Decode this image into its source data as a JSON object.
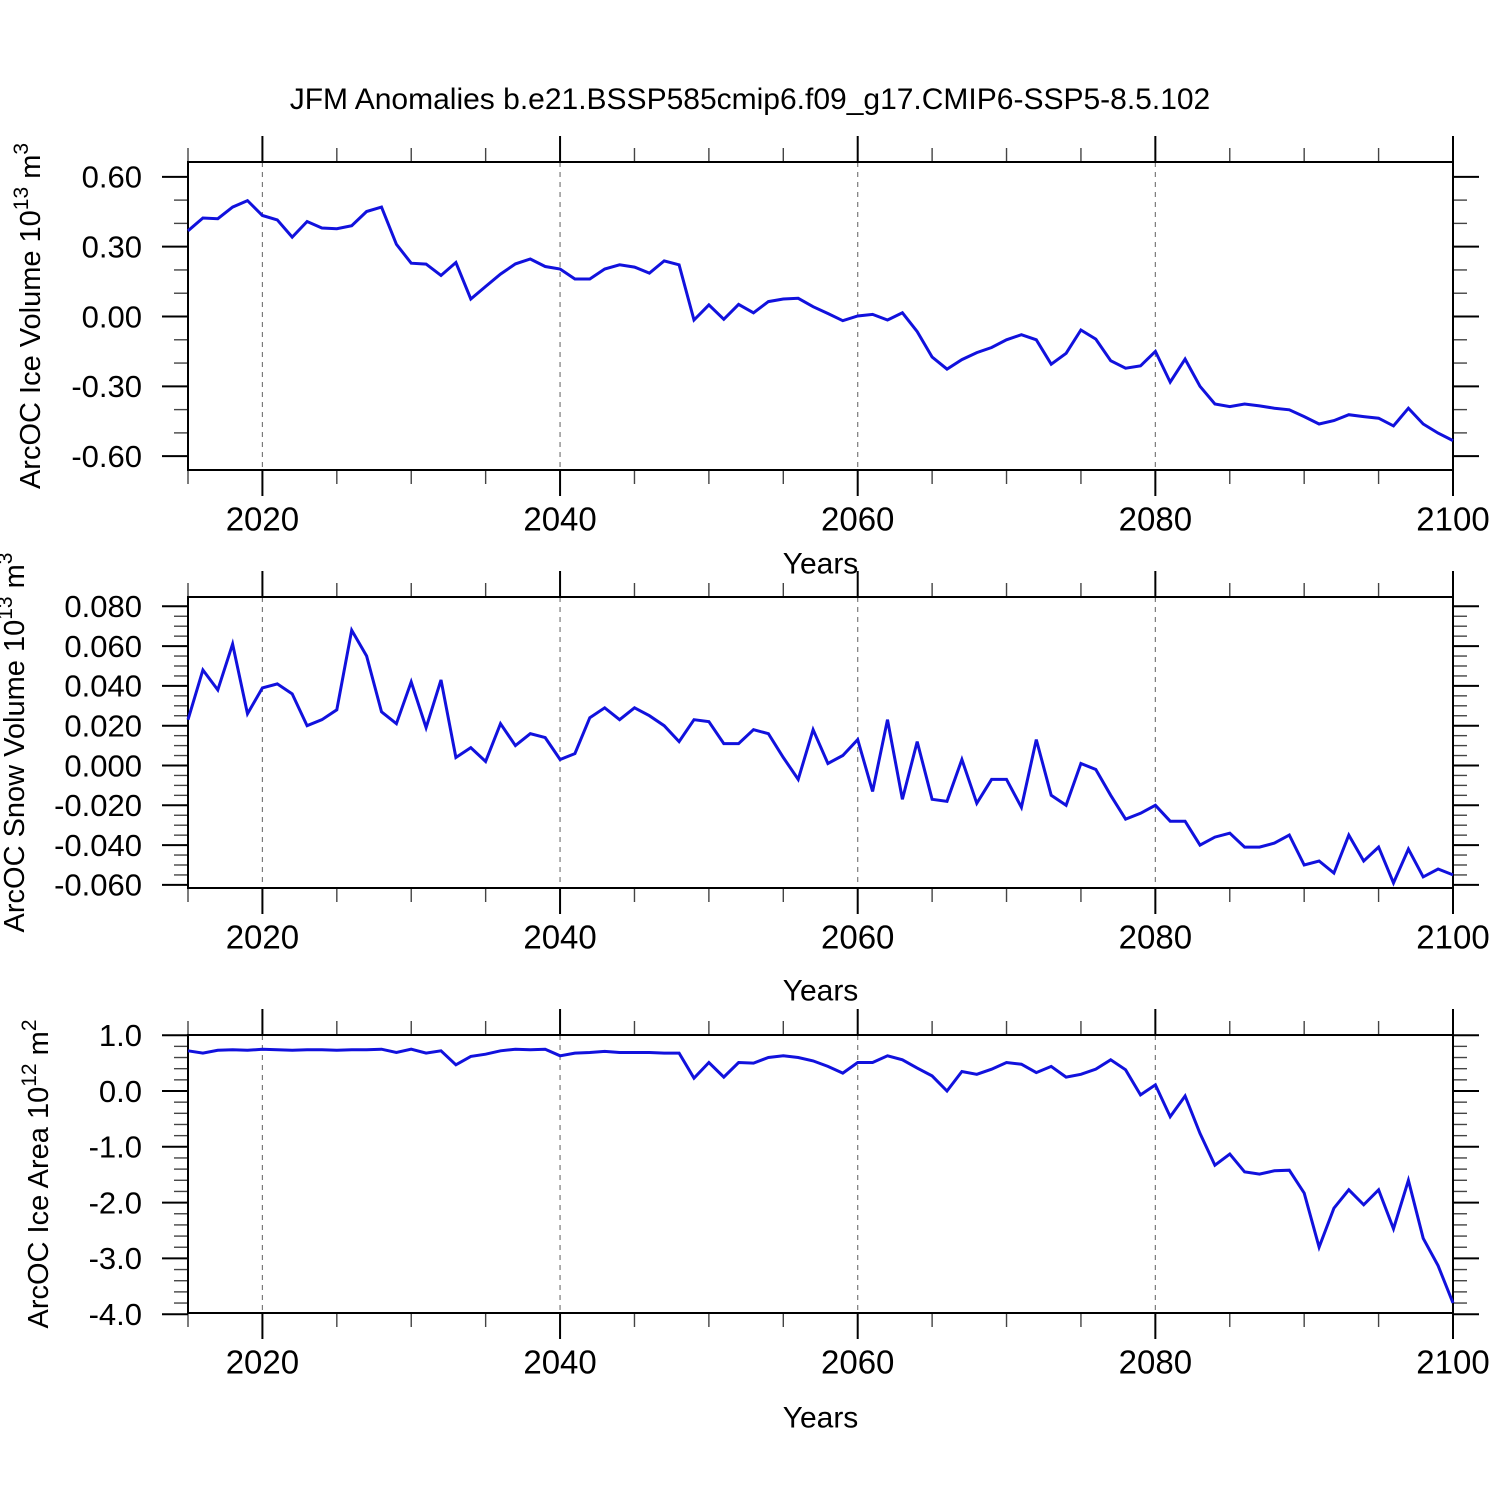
{
  "title": "JFM Anomalies b.e21.BSSP585cmip6.f09_g17.CMIP6-SSP5-8.5.102",
  "line_color": "#1111dd",
  "grid_color": "#7a7a7a",
  "axis_color": "#000000",
  "minor_tick_color": "#444444",
  "chart_data": [
    {
      "type": "line",
      "name": "arcoc-ice-volume",
      "ylabel": {
        "base": "ArcOC Ice Volume 10",
        "exp": "13",
        "unit": " m",
        "unit_exp": "3"
      },
      "xlabel": "Years",
      "x_start": 2015,
      "x_end": 2100,
      "xticks": [
        2020,
        2040,
        2060,
        2080,
        2100
      ],
      "xtick_labels": [
        "2020",
        "2040",
        "2060",
        "2080",
        "2100"
      ],
      "x_minor_step": 5,
      "grid_years": [
        2020,
        2040,
        2060,
        2080
      ],
      "ylim": [
        -0.6594,
        0.6637
      ],
      "yticks": [
        0.6,
        0.3,
        0.0,
        -0.3,
        -0.6
      ],
      "ytick_labels": [
        "0.60",
        "0.30",
        "0.00",
        "-0.30",
        "-0.60"
      ],
      "y_minor_step": 0.1,
      "values": [
        0.368,
        0.423,
        0.42,
        0.47,
        0.498,
        0.434,
        0.415,
        0.341,
        0.408,
        0.38,
        0.377,
        0.39,
        0.451,
        0.47,
        0.31,
        0.229,
        0.225,
        0.176,
        0.232,
        0.075,
        0.129,
        0.182,
        0.226,
        0.247,
        0.215,
        0.204,
        0.161,
        0.161,
        0.204,
        0.222,
        0.212,
        0.186,
        0.239,
        0.222,
        -0.015,
        0.05,
        -0.012,
        0.052,
        0.016,
        0.064,
        0.075,
        0.078,
        0.042,
        0.013,
        -0.018,
        0.002,
        0.009,
        -0.015,
        0.016,
        -0.065,
        -0.174,
        -0.226,
        -0.185,
        -0.155,
        -0.133,
        -0.1,
        -0.078,
        -0.1,
        -0.205,
        -0.158,
        -0.058,
        -0.097,
        -0.19,
        -0.222,
        -0.212,
        -0.15,
        -0.282,
        -0.183,
        -0.3,
        -0.376,
        -0.387,
        -0.376,
        -0.384,
        -0.394,
        -0.401,
        -0.43,
        -0.462,
        -0.447,
        -0.422,
        -0.43,
        -0.437,
        -0.47,
        -0.394,
        -0.462,
        -0.501,
        -0.533
      ]
    },
    {
      "type": "line",
      "name": "arcoc-snow-volume",
      "ylabel": {
        "base": "ArcOC Snow Volume 10",
        "exp": "13",
        "unit": " m",
        "unit_exp": "3"
      },
      "xlabel": "Years",
      "x_start": 2015,
      "x_end": 2100,
      "xticks": [
        2020,
        2040,
        2060,
        2080,
        2100
      ],
      "xtick_labels": [
        "2020",
        "2040",
        "2060",
        "2080",
        "2100"
      ],
      "x_minor_step": 5,
      "grid_years": [
        2020,
        2040,
        2060,
        2080
      ],
      "ylim": [
        -0.06156,
        0.08467
      ],
      "yticks": [
        0.08,
        0.06,
        0.04,
        0.02,
        0.0,
        -0.02,
        -0.04,
        -0.06
      ],
      "ytick_labels": [
        "0.080",
        "0.060",
        "0.040",
        "0.020",
        "0.000",
        "-0.020",
        "-0.040",
        "-0.060"
      ],
      "y_minor_step": 0.005,
      "values": [
        0.023,
        0.048,
        0.038,
        0.061,
        0.026,
        0.039,
        0.041,
        0.036,
        0.02,
        0.023,
        0.028,
        0.068,
        0.055,
        0.027,
        0.021,
        0.042,
        0.019,
        0.043,
        0.004,
        0.009,
        0.002,
        0.021,
        0.01,
        0.016,
        0.014,
        0.003,
        0.006,
        0.024,
        0.029,
        0.023,
        0.029,
        0.025,
        0.02,
        0.012,
        0.023,
        0.022,
        0.011,
        0.011,
        0.018,
        0.016,
        0.004,
        -0.007,
        0.018,
        0.001,
        0.005,
        0.013,
        -0.013,
        0.023,
        -0.017,
        0.012,
        -0.017,
        -0.018,
        0.003,
        -0.019,
        -0.007,
        -0.007,
        -0.021,
        0.013,
        -0.015,
        -0.02,
        0.001,
        -0.002,
        -0.015,
        -0.027,
        -0.024,
        -0.02,
        -0.028,
        -0.028,
        -0.04,
        -0.036,
        -0.034,
        -0.041,
        -0.041,
        -0.039,
        -0.035,
        -0.05,
        -0.048,
        -0.054,
        -0.035,
        -0.048,
        -0.041,
        -0.059,
        -0.042,
        -0.056,
        -0.052,
        -0.055
      ]
    },
    {
      "type": "line",
      "name": "arcoc-ice-area",
      "ylabel": {
        "base": "ArcOC Ice Area 10",
        "exp": "12",
        "unit": " m",
        "unit_exp": "2"
      },
      "xlabel": "Years",
      "x_start": 2015,
      "x_end": 2100,
      "xticks": [
        2020,
        2040,
        2060,
        2080,
        2100
      ],
      "xtick_labels": [
        "2020",
        "2040",
        "2060",
        "2080",
        "2100"
      ],
      "x_minor_step": 5,
      "grid_years": [
        2020,
        2040,
        2060,
        2080
      ],
      "ylim": [
        -3.9785,
        1.0036
      ],
      "yticks": [
        1.0,
        0.0,
        -1.0,
        -2.0,
        -3.0,
        -4.0
      ],
      "ytick_labels": [
        "1.0",
        "0.0",
        "-1.0",
        "-2.0",
        "-3.0",
        "-4.0"
      ],
      "y_minor_step": 0.2,
      "values": [
        0.72,
        0.68,
        0.73,
        0.74,
        0.73,
        0.75,
        0.74,
        0.73,
        0.74,
        0.74,
        0.73,
        0.74,
        0.74,
        0.75,
        0.69,
        0.75,
        0.68,
        0.72,
        0.47,
        0.62,
        0.66,
        0.72,
        0.75,
        0.74,
        0.75,
        0.63,
        0.68,
        0.69,
        0.71,
        0.69,
        0.69,
        0.69,
        0.68,
        0.68,
        0.23,
        0.51,
        0.25,
        0.51,
        0.5,
        0.6,
        0.63,
        0.6,
        0.54,
        0.44,
        0.32,
        0.51,
        0.51,
        0.63,
        0.56,
        0.41,
        0.27,
        0.0,
        0.35,
        0.3,
        0.39,
        0.51,
        0.48,
        0.33,
        0.44,
        0.25,
        0.3,
        0.39,
        0.56,
        0.38,
        -0.07,
        0.11,
        -0.46,
        -0.09,
        -0.76,
        -1.33,
        -1.13,
        -1.45,
        -1.49,
        -1.43,
        -1.42,
        -1.83,
        -2.8,
        -2.1,
        -1.77,
        -2.04,
        -1.77,
        -2.47,
        -1.6,
        -2.64,
        -3.13,
        -3.8
      ]
    }
  ]
}
